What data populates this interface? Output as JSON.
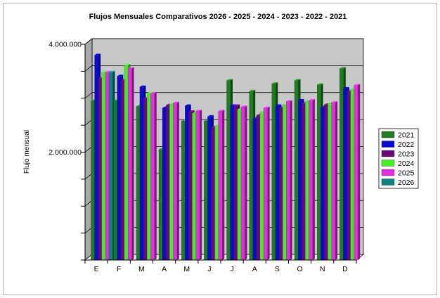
{
  "chart_data": {
    "type": "bar",
    "title": "Flujos Mensuales Comparativos 2026 - 2025 - 2024 - 2023 - 2022 - 2021",
    "xlabel": "",
    "ylabel": "Flujo mensual",
    "ylim": [
      0,
      4000000
    ],
    "yticks": [
      "2.000.000",
      "4.000.000"
    ],
    "ytick_values": [
      2000000,
      4000000
    ],
    "grid": true,
    "legend_position": "right",
    "categories": [
      "E",
      "F",
      "M",
      "A",
      "M",
      "J",
      "J",
      "A",
      "S",
      "O",
      "N",
      "D"
    ],
    "series": [
      {
        "name": "2021",
        "color": "#1e7e1e",
        "values": [
          2950000,
          2950000,
          2850000,
          2050000,
          2580000,
          2580000,
          3330000,
          3130000,
          3270000,
          3330000,
          3250000,
          3550000
        ]
      },
      {
        "name": "2022",
        "color": "#0a0ad8",
        "values": [
          3800000,
          3410000,
          3210000,
          2820000,
          2860000,
          2660000,
          2860000,
          2620000,
          2860000,
          2960000,
          2830000,
          3180000
        ]
      },
      {
        "name": "2023",
        "color": "#6a0a78",
        "values": [
          3360000,
          3330000,
          2990000,
          2870000,
          2750000,
          2460000,
          2860000,
          2680000,
          2820000,
          2900000,
          2880000,
          3120000
        ]
      },
      {
        "name": "2024",
        "color": "#44ee22",
        "values": [
          3480000,
          3610000,
          3090000,
          2890000,
          2720000,
          2490000,
          2790000,
          2740000,
          2880000,
          2940000,
          2900000,
          3160000
        ]
      },
      {
        "name": "2025",
        "color": "#e030e0",
        "values": [
          3480000,
          3550000,
          3090000,
          2910000,
          2760000,
          2760000,
          2840000,
          2820000,
          2940000,
          2960000,
          2920000,
          3240000
        ]
      },
      {
        "name": "2026",
        "color": "#0e8080",
        "values": [
          3480000,
          null,
          null,
          null,
          null,
          null,
          null,
          null,
          null,
          null,
          null,
          null
        ]
      }
    ]
  }
}
